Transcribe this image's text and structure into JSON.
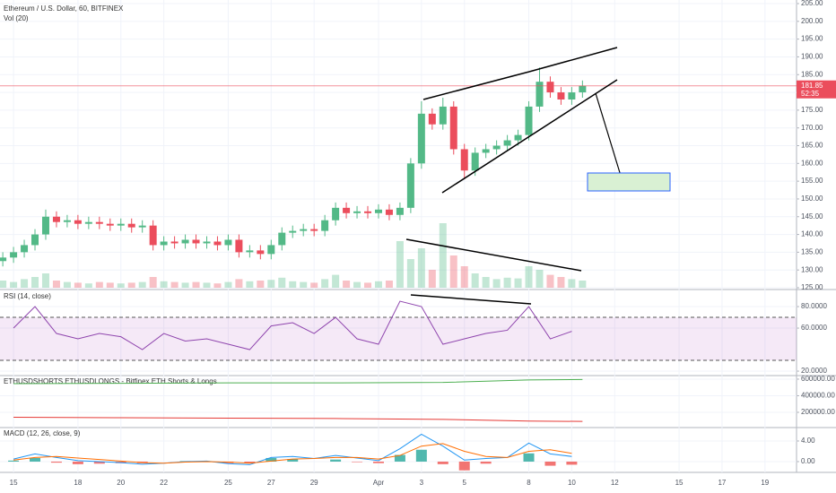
{
  "chart_data": [
    {
      "type": "candlestick",
      "title": "Ethereum / U.S. Dollar, 60, BITFINEX",
      "subtitle": "Vol (20)",
      "x": [
        -0.5,
        0,
        0.5,
        1,
        1.5,
        2,
        2.5,
        3,
        3.5,
        4,
        4.5,
        5,
        5.5,
        6,
        6.5,
        7,
        7.5,
        8,
        8.5,
        9,
        9.5,
        10,
        10.5,
        11,
        11.5,
        12,
        12.5,
        13,
        13.5,
        14,
        14.5,
        15,
        15.5,
        16,
        16.5,
        17,
        17.5,
        18,
        18.5,
        19,
        19.5,
        20,
        20.5,
        21,
        21.5,
        22,
        22.5,
        23,
        23.5,
        24,
        24.5,
        25,
        25.5,
        26,
        26.5
      ],
      "open": [
        132.5,
        133.5,
        135,
        137,
        140,
        145,
        143.5,
        144,
        143,
        143.5,
        143,
        142.5,
        143,
        142,
        142.5,
        137,
        138,
        137.5,
        138.5,
        137.5,
        138,
        137,
        138.5,
        135,
        135.5,
        134.5,
        137,
        140.5,
        141,
        141.5,
        141,
        144,
        147.5,
        146,
        146.5,
        146,
        147,
        145.5,
        147.5,
        160,
        174,
        171,
        176,
        164,
        158,
        163,
        164,
        165,
        166.5,
        168,
        176,
        183,
        180,
        178,
        180
      ],
      "high": [
        135,
        136.5,
        138.5,
        141.5,
        147,
        146.5,
        145.5,
        145.5,
        145,
        145,
        144.5,
        144.5,
        144.5,
        144,
        144,
        139.5,
        139.5,
        140,
        140,
        139.5,
        139.5,
        140,
        140,
        137,
        137,
        138.5,
        142,
        142.5,
        143,
        143,
        145.5,
        149,
        149,
        148,
        148,
        148.5,
        148.5,
        149,
        161.5,
        177.5,
        175.5,
        178.5,
        177.5,
        165.5,
        164.5,
        165.5,
        166.5,
        168,
        169.5,
        177.5,
        187,
        184.5,
        181.5,
        181.5,
        183.35
      ],
      "low": [
        131,
        132,
        133.5,
        135.5,
        138.5,
        142,
        142,
        141.5,
        141.5,
        141.5,
        141,
        141,
        140.5,
        140.5,
        135.5,
        135.5,
        136,
        136,
        136,
        136,
        135.5,
        135.5,
        133.5,
        133.5,
        133,
        133,
        135.5,
        139,
        139.5,
        139.5,
        139.5,
        142.5,
        144.5,
        144.5,
        144.5,
        144.5,
        144,
        144,
        146,
        158.5,
        169.5,
        169.5,
        162.5,
        155.5,
        156.5,
        161.5,
        162.5,
        163.5,
        165,
        166.5,
        174.5,
        178.5,
        176.5,
        176.5,
        178.5
      ],
      "close": [
        133.5,
        135,
        137,
        140,
        145,
        143.5,
        144,
        143,
        143.5,
        143,
        142.5,
        143,
        142,
        142.5,
        137,
        138,
        137.5,
        138.5,
        137.5,
        138,
        137,
        138.5,
        135,
        135.5,
        134.5,
        137,
        140.5,
        141,
        141.5,
        141,
        144,
        147.5,
        146,
        146.5,
        146,
        147,
        145.5,
        147.5,
        160,
        174,
        171,
        176,
        164,
        158,
        163,
        164,
        165,
        166.5,
        168,
        176,
        183,
        180,
        178,
        180,
        181.85
      ],
      "volume": [
        10,
        8,
        12,
        15,
        20,
        10,
        8,
        7,
        6,
        8,
        7,
        6,
        7,
        8,
        15,
        9,
        8,
        7,
        8,
        7,
        6,
        8,
        12,
        9,
        10,
        11,
        14,
        9,
        8,
        7,
        12,
        18,
        10,
        8,
        7,
        9,
        10,
        65,
        40,
        55,
        25,
        90,
        45,
        30,
        20,
        15,
        12,
        14,
        13,
        30,
        25,
        18,
        15,
        12,
        10
      ],
      "volume_ylim": [
        0,
        100
      ],
      "up_color": "#53b987",
      "down_color": "#eb4d5c",
      "last_price": 181.85,
      "countdown": "52:35",
      "ylim": [
        125,
        205
      ],
      "yticks": [
        {
          "value": 125,
          "label": "125.00"
        },
        {
          "value": 130,
          "label": "130.00"
        },
        {
          "value": 135,
          "label": "135.00"
        },
        {
          "value": 140,
          "label": "140.00"
        },
        {
          "value": 145,
          "label": "145.00"
        },
        {
          "value": 150,
          "label": "150.00"
        },
        {
          "value": 155,
          "label": "155.00"
        },
        {
          "value": 160,
          "label": "160.00"
        },
        {
          "value": 165,
          "label": "165.00"
        },
        {
          "value": 170,
          "label": "170.00"
        },
        {
          "value": 175,
          "label": "175.00"
        },
        {
          "value": 180,
          "label": "180.00"
        },
        {
          "value": 185,
          "label": "185.00"
        },
        {
          "value": 190,
          "label": "190.00"
        },
        {
          "value": 195,
          "label": "195.00"
        },
        {
          "value": 200,
          "label": "200.00"
        },
        {
          "value": 205,
          "label": "205.00"
        }
      ],
      "xlim": [
        -0.63,
        36.47
      ],
      "xticks": [
        {
          "value": 0,
          "label": "15"
        },
        {
          "value": 3,
          "label": "18"
        },
        {
          "value": 5,
          "label": "20"
        },
        {
          "value": 7,
          "label": "22"
        },
        {
          "value": 10,
          "label": "25"
        },
        {
          "value": 12,
          "label": "27"
        },
        {
          "value": 14,
          "label": "29"
        },
        {
          "value": 17,
          "label": "Apr"
        },
        {
          "value": 19,
          "label": "3"
        },
        {
          "value": 21,
          "label": "5"
        },
        {
          "value": 24,
          "label": "8"
        },
        {
          "value": 26,
          "label": "10"
        },
        {
          "value": 28,
          "label": "12"
        },
        {
          "value": 31,
          "label": "15"
        },
        {
          "value": 33,
          "label": "17"
        },
        {
          "value": 35,
          "label": "19"
        }
      ],
      "grid": true
    },
    {
      "type": "line",
      "title": "RSI (14, close)",
      "x": [
        0,
        1,
        2,
        3,
        4,
        5,
        6,
        7,
        8,
        9,
        10,
        11,
        12,
        13,
        14,
        15,
        16,
        17,
        18,
        19,
        20,
        21,
        22,
        23,
        24,
        25,
        26
      ],
      "series": [
        {
          "color": "#8e44ad",
          "values": [
            60,
            80,
            55,
            50,
            55,
            52,
            40,
            55,
            48,
            50,
            45,
            40,
            62,
            65,
            55,
            70,
            50,
            45,
            85,
            80,
            45,
            50,
            55,
            58,
            80,
            50,
            57
          ]
        }
      ],
      "band": [
        30,
        70
      ],
      "band_color": "#9c27b0",
      "ylim": [
        16.7,
        94.2
      ],
      "yticks": [
        {
          "value": 20,
          "label": "20.0000"
        },
        {
          "value": 60,
          "label": "60.0000"
        },
        {
          "value": 80,
          "label": "80.0000"
        }
      ]
    },
    {
      "type": "line",
      "title": "ETHUSDSHORTS ETHUSDLONGS - Bitfinex ETH Shorts & Longs",
      "x": [
        0,
        5,
        10,
        15,
        20,
        24,
        26.5
      ],
      "series": [
        {
          "color": "#4caf50",
          "values": [
            545000,
            550000,
            555000,
            555000,
            560000,
            590000,
            595000
          ]
        },
        {
          "color": "#e53935",
          "values": [
            140000,
            135000,
            130000,
            125000,
            115000,
            95000,
            90000
          ]
        }
      ],
      "ylim": [
        27000,
        632000
      ],
      "yticks": [
        {
          "value": 200000,
          "label": "200000.00"
        },
        {
          "value": 400000,
          "label": "400000.00"
        },
        {
          "value": 600000,
          "label": "600000.00"
        }
      ]
    },
    {
      "type": "line",
      "title": "MACD (12, 26, close, 9)",
      "x": [
        0,
        1,
        2,
        3,
        4,
        5,
        6,
        7,
        8,
        9,
        10,
        11,
        12,
        13,
        14,
        15,
        16,
        17,
        18,
        19,
        20,
        21,
        22,
        23,
        24,
        25,
        26
      ],
      "series": [
        {
          "color": "#2196f3",
          "values": [
            0.5,
            1.5,
            0.8,
            0.2,
            0,
            -0.2,
            -0.5,
            -0.3,
            0,
            0.1,
            -0.4,
            -0.6,
            0.8,
            1.0,
            0.6,
            1.2,
            0.7,
            0.2,
            2.5,
            5.3,
            3.0,
            0.3,
            0.6,
            0.8,
            3.6,
            1.5,
            1.0
          ]
        },
        {
          "color": "#ff6d00",
          "values": [
            0.3,
            0.8,
            1.0,
            0.7,
            0.4,
            0.1,
            -0.2,
            -0.3,
            -0.1,
            0,
            -0.1,
            -0.3,
            0.1,
            0.5,
            0.6,
            0.8,
            0.8,
            0.5,
            1.2,
            3.0,
            3.5,
            2.0,
            1.0,
            0.8,
            2.0,
            2.3,
            1.6
          ]
        }
      ],
      "histogram": [
        0.2,
        0.7,
        -0.2,
        -0.5,
        -0.4,
        -0.3,
        -0.3,
        0,
        0.1,
        0.1,
        -0.3,
        -0.3,
        0.7,
        0.5,
        0,
        0.4,
        -0.1,
        -0.3,
        1.3,
        2.3,
        -0.5,
        -1.7,
        -0.4,
        0,
        1.6,
        -0.8,
        -0.6
      ],
      "up_color": "#26a69a",
      "down_color": "#ef5350",
      "ylim": [
        -2.09,
        6.43
      ],
      "yticks": [
        {
          "value": 0,
          "label": "0.00"
        },
        {
          "value": 4,
          "label": "4.00"
        }
      ]
    }
  ]
}
